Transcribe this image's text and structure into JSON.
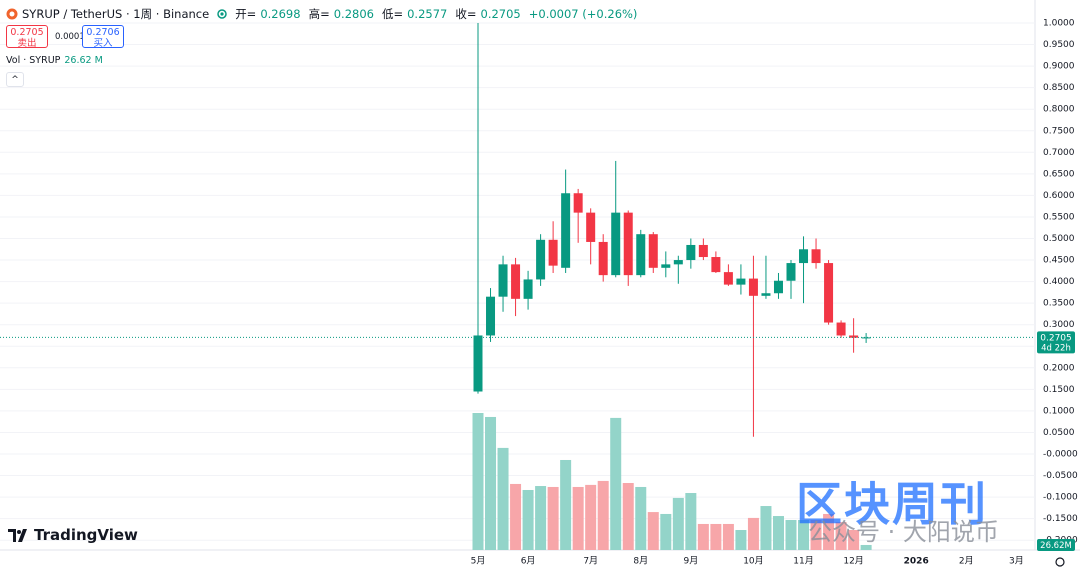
{
  "header": {
    "title": "SYRUP / TetherUS · 1周 · Binance",
    "ohlc_labels": [
      "开=",
      "高=",
      "低=",
      "收="
    ],
    "change": "+0.0007 (+0.26%)",
    "sell_price": "0.2705",
    "sell_label": "卖出",
    "spread": "0.0001",
    "buy_price": "0.2706",
    "buy_label": "买入",
    "countdown": "4d 22h",
    "logo": "TradingView",
    "watermark_title": "区块周刊",
    "watermark_sub": "公众号 · 大阳说币"
  },
  "chart_data": {
    "type": "candlestick",
    "categories": [
      "5月",
      null,
      null,
      null,
      "6月",
      null,
      null,
      null,
      null,
      "7月",
      null,
      null,
      null,
      "8月",
      null,
      null,
      null,
      "9月",
      null,
      null,
      null,
      null,
      "10月",
      null,
      null,
      null,
      "11月",
      null,
      null,
      null,
      "12月",
      null,
      null,
      null,
      null,
      "2026",
      null,
      null,
      null,
      "2月",
      null,
      null,
      null,
      "3月",
      null
    ],
    "open": [
      0.145,
      0.275,
      0.365,
      0.44,
      0.36,
      0.405,
      0.497,
      0.432,
      0.605,
      0.56,
      0.492,
      0.415,
      0.56,
      0.415,
      0.51,
      0.432,
      0.44,
      0.45,
      0.485,
      0.457,
      0.422,
      0.393,
      0.407,
      0.367,
      0.373,
      0.402,
      0.443,
      0.475,
      0.443,
      0.305,
      0.275,
      0.2698,
      null,
      null,
      null,
      null,
      null,
      null,
      null,
      null,
      null,
      null,
      null,
      null,
      null
    ],
    "high": [
      1.0,
      0.385,
      0.46,
      0.455,
      0.425,
      0.51,
      0.54,
      0.66,
      0.615,
      0.57,
      0.51,
      0.68,
      0.565,
      0.52,
      0.515,
      0.47,
      0.46,
      0.5,
      0.5,
      0.47,
      0.44,
      0.44,
      0.46,
      0.46,
      0.42,
      0.45,
      0.505,
      0.5,
      0.45,
      0.31,
      0.315,
      0.2806,
      null,
      null,
      null,
      null,
      null,
      null,
      null,
      null,
      null,
      null,
      null,
      null,
      null
    ],
    "low": [
      0.14,
      0.26,
      0.33,
      0.32,
      0.335,
      0.39,
      0.42,
      0.42,
      0.49,
      0.44,
      0.4,
      0.41,
      0.39,
      0.41,
      0.42,
      0.41,
      0.395,
      0.43,
      0.45,
      0.42,
      0.39,
      0.37,
      0.04,
      0.36,
      0.36,
      0.36,
      0.35,
      0.43,
      0.3,
      0.27,
      0.235,
      0.2577,
      null,
      null,
      null,
      null,
      null,
      null,
      null,
      null,
      null,
      null,
      null,
      null,
      null
    ],
    "close": [
      0.275,
      0.365,
      0.44,
      0.36,
      0.405,
      0.497,
      0.437,
      0.605,
      0.56,
      0.492,
      0.415,
      0.56,
      0.415,
      0.51,
      0.432,
      0.44,
      0.45,
      0.485,
      0.457,
      0.422,
      0.393,
      0.407,
      0.367,
      0.373,
      0.402,
      0.443,
      0.475,
      0.443,
      0.305,
      0.275,
      0.2698,
      0.2705,
      null,
      null,
      null,
      null,
      null,
      null,
      null,
      null,
      null,
      null,
      null,
      null,
      null
    ],
    "volume": [
      726,
      705,
      541,
      350,
      318,
      339,
      334,
      477,
      334,
      345,
      366,
      700,
      355,
      334,
      201,
      191,
      276,
      302,
      138,
      138,
      138,
      106,
      170,
      233,
      180,
      159,
      159,
      159,
      191,
      148,
      106,
      26.62,
      null,
      null,
      null,
      null,
      null,
      null,
      null,
      null,
      null,
      null,
      null,
      null,
      null
    ],
    "volume_name": "Vol · SYRUP",
    "volume_legend_label": "26.62 M",
    "volume_axis_label": "26.62M",
    "up_color": "#089981",
    "down_color": "#f23645",
    "volume_up_color": "#93d4c9",
    "volume_down_color": "#f7a6a9",
    "ylim": [
      -0.22,
      1.05
    ],
    "yticks": [
      {
        "value": 1.0,
        "label": "1.0000"
      },
      {
        "value": 0.95,
        "label": "0.9500"
      },
      {
        "value": 0.9,
        "label": "0.9000"
      },
      {
        "value": 0.85,
        "label": "0.8500"
      },
      {
        "value": 0.8,
        "label": "0.8000"
      },
      {
        "value": 0.75,
        "label": "0.7500"
      },
      {
        "value": 0.7,
        "label": "0.7000"
      },
      {
        "value": 0.65,
        "label": "0.6500"
      },
      {
        "value": 0.6,
        "label": "0.6000"
      },
      {
        "value": 0.55,
        "label": "0.5500"
      },
      {
        "value": 0.5,
        "label": "0.5000"
      },
      {
        "value": 0.45,
        "label": "0.4500"
      },
      {
        "value": 0.4,
        "label": "0.4000"
      },
      {
        "value": 0.35,
        "label": "0.3500"
      },
      {
        "value": 0.3,
        "label": "0.3000"
      },
      {
        "value": 0.25,
        "label": "0.2500"
      },
      {
        "value": 0.2,
        "label": "0.2000"
      },
      {
        "value": 0.15,
        "label": "0.1500"
      },
      {
        "value": 0.1,
        "label": "0.1000"
      },
      {
        "value": 0.05,
        "label": "0.0500"
      },
      {
        "value": 0,
        "label": "-0.0000"
      },
      {
        "value": -0.05,
        "label": "-0.0500"
      },
      {
        "value": -0.1,
        "label": "-0.1000"
      },
      {
        "value": -0.15,
        "label": "-0.1500"
      },
      {
        "value": -0.2,
        "label": "-0.2000"
      }
    ],
    "grid": true
  }
}
